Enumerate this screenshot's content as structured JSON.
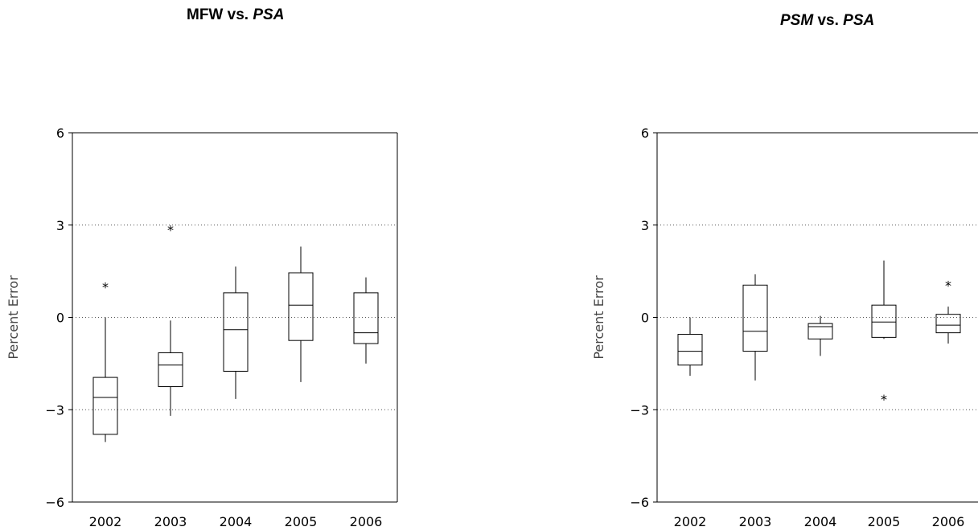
{
  "chart_data": [
    {
      "type": "box",
      "title_main": "MFW",
      "title_vs": " vs. ",
      "title_ref": "PSA",
      "xlabel": "",
      "ylabel": "Percent Error",
      "ylim": [
        -6,
        6
      ],
      "yticks": [
        6,
        3,
        0,
        -3,
        -6
      ],
      "ytick_labels": [
        "6",
        "3",
        "0",
        "−3",
        "−6"
      ],
      "grid": {
        "horizontal_dotted": [
          3,
          0,
          -3
        ]
      },
      "categories": [
        "2002",
        "2003",
        "2004",
        "2005",
        "2006"
      ],
      "boxes": [
        {
          "whisker_low": -4.05,
          "q1": -3.8,
          "median": -2.6,
          "q3": -1.95,
          "whisker_high": 0.0,
          "outliers": [
            1.05
          ]
        },
        {
          "whisker_low": -3.2,
          "q1": -2.25,
          "median": -1.55,
          "q3": -1.15,
          "whisker_high": -0.1,
          "outliers": [
            2.9
          ]
        },
        {
          "whisker_low": -2.65,
          "q1": -1.75,
          "median": -0.4,
          "q3": 0.8,
          "whisker_high": 1.65,
          "outliers": []
        },
        {
          "whisker_low": -2.1,
          "q1": -0.75,
          "median": 0.4,
          "q3": 1.45,
          "whisker_high": 2.3,
          "outliers": []
        },
        {
          "whisker_low": -1.5,
          "q1": -0.85,
          "median": -0.5,
          "q3": 0.8,
          "whisker_high": 1.3,
          "outliers": []
        }
      ]
    },
    {
      "type": "box",
      "title_main": "PSM",
      "title_vs": " vs. ",
      "title_ref": "PSA",
      "xlabel": "",
      "ylabel": "Percent Error",
      "ylim": [
        -6,
        6
      ],
      "yticks": [
        6,
        3,
        0,
        -3,
        -6
      ],
      "ytick_labels": [
        "6",
        "3",
        "0",
        "−3",
        "−6"
      ],
      "grid": {
        "horizontal_dotted": [
          3,
          0,
          -3
        ]
      },
      "categories": [
        "2002",
        "2003",
        "2004",
        "2005",
        "2006"
      ],
      "boxes": [
        {
          "whisker_low": -1.9,
          "q1": -1.55,
          "median": -1.1,
          "q3": -0.55,
          "whisker_high": 0.0,
          "outliers": []
        },
        {
          "whisker_low": -2.05,
          "q1": -1.1,
          "median": -0.45,
          "q3": 1.05,
          "whisker_high": 1.4,
          "outliers": []
        },
        {
          "whisker_low": -1.25,
          "q1": -0.7,
          "median": -0.3,
          "q3": -0.2,
          "whisker_high": 0.05,
          "outliers": []
        },
        {
          "whisker_low": -0.7,
          "q1": -0.65,
          "median": -0.15,
          "q3": 0.4,
          "whisker_high": 1.85,
          "outliers": [
            -2.6
          ]
        },
        {
          "whisker_low": -0.85,
          "q1": -0.5,
          "median": -0.25,
          "q3": 0.1,
          "whisker_high": 0.35,
          "outliers": [
            1.1
          ]
        }
      ]
    }
  ]
}
